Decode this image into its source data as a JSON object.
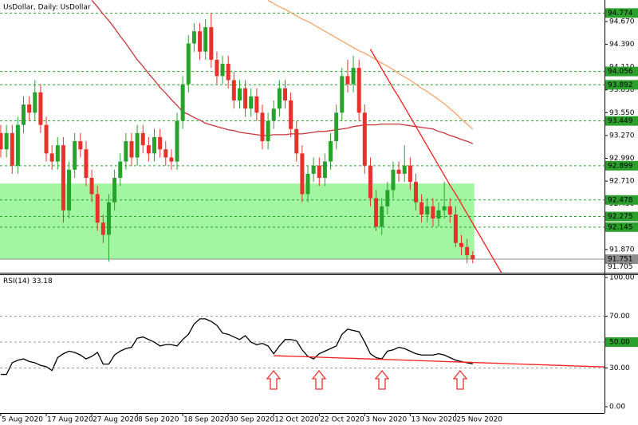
{
  "chart_data": [
    {
      "type": "candlestick",
      "title": "UsDollar, Daily:  UsDollar",
      "categories": [
        "5 Aug 2020",
        null,
        null,
        null,
        null,
        null,
        null,
        null,
        "17 Aug 2020",
        null,
        null,
        null,
        null,
        null,
        null,
        null,
        "27 Aug 2020",
        null,
        null,
        null,
        null,
        null,
        null,
        null,
        "8 Sep 2020",
        null,
        null,
        null,
        null,
        null,
        null,
        null,
        "18 Sep 2020",
        null,
        null,
        null,
        null,
        null,
        null,
        null,
        "30 Sep 2020",
        null,
        null,
        null,
        null,
        null,
        null,
        null,
        "12 Oct 2020",
        null,
        null,
        null,
        null,
        null,
        null,
        null,
        "22 Oct 2020",
        null,
        null,
        null,
        null,
        null,
        null,
        null,
        "3 Nov 2020",
        null,
        null,
        null,
        null,
        null,
        null,
        null,
        "13 Nov 2020",
        null,
        null,
        null,
        null,
        null,
        null,
        null,
        "25 Nov 2020",
        null,
        null,
        null
      ],
      "open": [
        93.3,
        93.1,
        93.3,
        92.9,
        93.4,
        93.65,
        93.55,
        93.8,
        93.4,
        93.05,
        92.95,
        93.15,
        92.35,
        92.85,
        93.2,
        93.1,
        92.75,
        92.55,
        92.2,
        92.05,
        92.45,
        92.75,
        92.95,
        93.2,
        93.0,
        93.3,
        93.15,
        93.05,
        93.25,
        93.1,
        93.0,
        92.95,
        93.45,
        93.9,
        94.4,
        94.55,
        94.3,
        94.6,
        94.2,
        94.0,
        94.15,
        93.95,
        93.7,
        93.85,
        93.6,
        93.75,
        93.55,
        93.2,
        93.45,
        93.6,
        93.85,
        93.7,
        93.35,
        93.05,
        92.55,
        92.8,
        92.9,
        92.75,
        92.95,
        93.2,
        93.55,
        94.0,
        93.9,
        94.1,
        93.55,
        92.9,
        92.5,
        92.15,
        92.4,
        92.6,
        92.85,
        92.8,
        92.9,
        92.7,
        92.45,
        92.3,
        92.4,
        92.25,
        92.35,
        92.4,
        92.3,
        91.95,
        91.9,
        91.8
      ],
      "high": [
        93.4,
        93.4,
        93.4,
        93.5,
        93.75,
        93.75,
        93.95,
        93.9,
        93.5,
        93.15,
        93.25,
        93.25,
        92.95,
        93.3,
        93.3,
        93.2,
        92.85,
        92.65,
        92.3,
        92.55,
        92.85,
        93.05,
        93.3,
        93.3,
        93.4,
        93.4,
        93.25,
        93.35,
        93.35,
        93.2,
        93.1,
        93.55,
        94.0,
        94.5,
        94.65,
        94.65,
        94.7,
        94.77,
        94.3,
        94.25,
        94.25,
        94.05,
        93.95,
        93.95,
        93.85,
        93.85,
        93.65,
        93.55,
        93.7,
        93.95,
        93.95,
        93.8,
        93.45,
        93.15,
        92.9,
        93.0,
        93.0,
        93.05,
        93.3,
        93.65,
        94.1,
        94.2,
        94.25,
        94.2,
        93.65,
        93.0,
        92.6,
        92.5,
        92.7,
        92.95,
        92.95,
        93.15,
        93.0,
        92.8,
        92.55,
        92.5,
        92.5,
        92.45,
        92.7,
        92.5,
        92.4,
        92.05,
        92.0,
        91.85
      ],
      "low": [
        93.0,
        93.0,
        92.8,
        92.8,
        93.3,
        93.45,
        93.45,
        93.3,
        92.95,
        92.85,
        92.85,
        92.2,
        92.25,
        92.75,
        93.0,
        92.65,
        92.45,
        92.1,
        91.95,
        91.72,
        92.35,
        92.65,
        92.85,
        92.9,
        92.9,
        93.05,
        92.95,
        92.95,
        93.0,
        92.9,
        92.85,
        92.85,
        93.35,
        93.8,
        94.3,
        94.2,
        94.2,
        94.1,
        93.9,
        93.9,
        93.85,
        93.6,
        93.6,
        93.5,
        93.5,
        93.45,
        93.1,
        93.1,
        93.35,
        93.5,
        93.6,
        93.25,
        92.95,
        92.45,
        92.45,
        92.7,
        92.65,
        92.65,
        92.85,
        93.1,
        93.45,
        93.8,
        93.8,
        93.45,
        92.8,
        92.4,
        92.1,
        92.05,
        92.3,
        92.5,
        92.7,
        92.7,
        92.6,
        92.35,
        92.2,
        92.2,
        92.15,
        92.15,
        92.25,
        92.2,
        91.9,
        91.8,
        91.7,
        91.7
      ],
      "close": [
        93.1,
        93.3,
        92.9,
        93.4,
        93.65,
        93.55,
        93.8,
        93.4,
        93.05,
        92.95,
        93.15,
        92.35,
        92.85,
        93.2,
        93.1,
        92.75,
        92.55,
        92.2,
        92.05,
        92.45,
        92.75,
        92.95,
        93.2,
        93.0,
        93.3,
        93.15,
        93.05,
        93.25,
        93.1,
        93.0,
        92.95,
        93.45,
        93.9,
        94.4,
        94.55,
        94.3,
        94.6,
        94.2,
        94.0,
        94.15,
        93.95,
        93.7,
        93.85,
        93.6,
        93.75,
        93.55,
        93.2,
        93.45,
        93.6,
        93.85,
        93.7,
        93.35,
        93.05,
        92.55,
        92.8,
        92.9,
        92.75,
        92.95,
        93.2,
        93.55,
        94.0,
        93.9,
        94.1,
        93.55,
        92.9,
        92.5,
        92.15,
        92.4,
        92.6,
        92.85,
        92.8,
        92.9,
        92.7,
        92.45,
        92.3,
        92.4,
        92.25,
        92.35,
        92.4,
        92.3,
        91.95,
        91.9,
        91.8,
        91.75
      ],
      "up_color": "#26a32b",
      "down_color": "#e8312b",
      "ylim": [
        91.585,
        94.934
      ],
      "yticks": [
        {
          "value": 94.67,
          "label": "94.670"
        },
        {
          "value": 94.39,
          "label": "94.390"
        },
        {
          "value": 94.11,
          "label": "94.110"
        },
        {
          "value": 93.83,
          "label": "93.830"
        },
        {
          "value": 93.55,
          "label": "93.550"
        },
        {
          "value": 93.27,
          "label": "93.270"
        },
        {
          "value": 92.99,
          "label": "92.990"
        },
        {
          "value": 92.71,
          "label": "92.710"
        },
        {
          "value": 92.43,
          "label": "92.430"
        },
        {
          "value": 92.15,
          "label": "92.150"
        },
        {
          "value": 91.87,
          "label": "91.870"
        }
      ],
      "levels": {
        "values": [
          94.774,
          94.056,
          93.892,
          93.449,
          92.899,
          92.478,
          92.275,
          92.145
        ],
        "color": "#2ca02c"
      },
      "zone": {
        "low": 91.75,
        "high": 92.68,
        "color": "#98f598"
      },
      "bid": {
        "value": 91.751,
        "color": "#8c8c8c"
      },
      "ask": {
        "value": 91.705,
        "color": "#8c8c8c"
      },
      "series": [
        {
          "color": "#c9343a",
          "values": [
            null,
            null,
            null,
            null,
            null,
            null,
            null,
            null,
            null,
            null,
            null,
            null,
            null,
            null,
            null,
            null,
            94.93,
            94.85,
            94.76,
            94.68,
            94.59,
            94.49,
            94.4,
            94.3,
            94.2,
            94.12,
            94.03,
            93.95,
            93.86,
            93.79,
            93.71,
            93.64,
            93.56,
            93.53,
            93.49,
            93.46,
            93.42,
            93.4,
            93.38,
            93.36,
            93.34,
            93.33,
            93.31,
            93.3,
            93.29,
            93.28,
            93.27,
            93.27,
            93.28,
            93.28,
            93.28,
            93.29,
            93.29,
            93.29,
            93.3,
            93.31,
            93.32,
            93.32,
            93.33,
            93.34,
            93.35,
            93.36,
            93.38,
            93.39,
            93.4,
            93.4,
            93.4,
            93.41,
            93.41,
            93.41,
            93.41,
            93.4,
            93.39,
            93.38,
            93.37,
            93.36,
            93.35,
            93.32,
            93.3,
            93.27,
            93.25,
            93.22,
            93.2,
            93.17
          ]
        },
        {
          "color": "#f5a36a",
          "values": [
            null,
            null,
            null,
            null,
            null,
            null,
            null,
            null,
            null,
            null,
            null,
            null,
            null,
            null,
            null,
            null,
            null,
            null,
            null,
            null,
            null,
            null,
            null,
            null,
            null,
            null,
            null,
            null,
            null,
            null,
            null,
            null,
            null,
            null,
            null,
            null,
            null,
            null,
            null,
            null,
            null,
            null,
            null,
            null,
            null,
            null,
            null,
            94.93,
            94.89,
            94.85,
            94.82,
            94.78,
            94.74,
            94.7,
            94.67,
            94.63,
            94.59,
            94.55,
            94.51,
            94.47,
            94.43,
            94.39,
            94.35,
            94.31,
            94.28,
            94.24,
            94.2,
            94.16,
            94.12,
            94.08,
            94.03,
            93.99,
            93.95,
            93.9,
            93.85,
            93.81,
            93.76,
            93.71,
            93.66,
            93.6,
            93.54,
            93.47,
            93.41,
            93.35
          ]
        },
        {
          "color": "#ff1a1a",
          "values": [
            null,
            null,
            null,
            null,
            null,
            null,
            null,
            null,
            null,
            null,
            null,
            null,
            null,
            null,
            null,
            null,
            null,
            null,
            null,
            null,
            null,
            null,
            null,
            null,
            null,
            null,
            null,
            null,
            null,
            null,
            null,
            null,
            null,
            null,
            null,
            null,
            null,
            null,
            null,
            null,
            null,
            null,
            null,
            null,
            null,
            null,
            null,
            null,
            null,
            null,
            null,
            null,
            null,
            null,
            null,
            null,
            null,
            null,
            null,
            null,
            null,
            null,
            null,
            null,
            null,
            94.33,
            94.21,
            94.09,
            93.97,
            93.85,
            93.74,
            93.62,
            93.5,
            93.38,
            93.26,
            93.14,
            93.02,
            92.9,
            92.78,
            92.66,
            92.55,
            92.43,
            92.31,
            92.19
          ]
        }
      ]
    },
    {
      "type": "line",
      "title": "RSI(14)",
      "ylim": [
        -4.9,
        103.1
      ],
      "yticks": [
        {
          "value": 100,
          "label": "100.00"
        },
        {
          "value": 70,
          "label": "70.00"
        },
        {
          "value": 50,
          "label": "50.00"
        },
        {
          "value": 30,
          "label": "30.00"
        },
        {
          "value": 0,
          "label": "0.00"
        }
      ],
      "levels": [
        70,
        50,
        30
      ],
      "highlight": 50,
      "highlight_color": "#2ca02c",
      "series": [
        {
          "color": "#000000",
          "values": [
            25,
            25,
            34,
            36,
            37,
            35,
            34,
            32,
            31,
            28,
            38,
            41,
            43,
            42,
            40,
            37,
            39,
            42,
            33,
            33,
            40,
            43,
            45,
            46,
            53,
            54,
            52,
            50,
            47,
            48,
            48,
            47,
            52,
            56,
            64,
            68,
            68,
            66,
            63,
            57,
            56,
            54,
            52,
            55,
            50,
            48,
            49,
            47,
            41,
            47,
            52,
            52,
            51,
            44,
            39,
            37,
            41,
            43,
            45,
            47,
            56,
            60,
            59,
            58,
            50,
            41,
            38,
            37,
            43,
            44,
            46,
            45,
            43,
            41,
            40,
            40,
            40,
            41,
            40,
            38,
            36,
            35,
            34,
            33.18
          ]
        },
        {
          "color": "#ff1a1a",
          "values": [
            null,
            null,
            null,
            null,
            null,
            null,
            null,
            null,
            null,
            null,
            null,
            null,
            null,
            null,
            null,
            null,
            null,
            null,
            null,
            null,
            null,
            null,
            null,
            null,
            null,
            null,
            null,
            null,
            null,
            null,
            null,
            null,
            null,
            null,
            null,
            null,
            null,
            null,
            null,
            null,
            null,
            null,
            null,
            null,
            null,
            null,
            null,
            null,
            39.5,
            39.35,
            39.2,
            39.05,
            38.9,
            38.75,
            38.6,
            38.45,
            38.3,
            38.15,
            38.0,
            37.85,
            37.7,
            37.55,
            37.4,
            37.25,
            37.1,
            36.95,
            36.8,
            36.65,
            36.5,
            36.35,
            36.2,
            36.05,
            35.9,
            35.75,
            35.6,
            35.45,
            35.3,
            35.15,
            35.0,
            34.85,
            34.7,
            34.55,
            34.4,
            34.25
          ]
        }
      ]
    }
  ]
}
